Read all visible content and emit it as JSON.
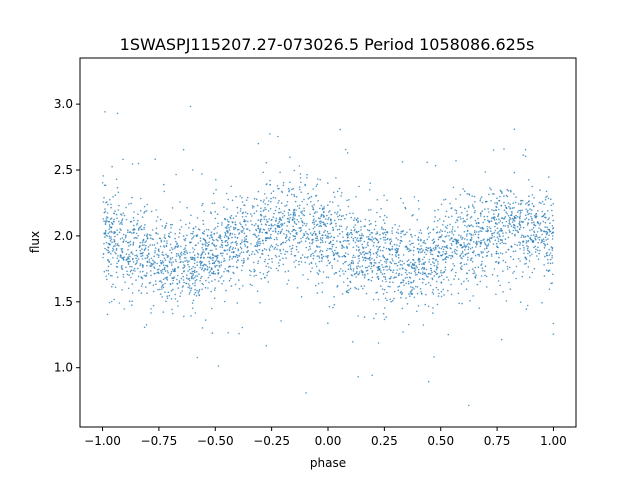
{
  "chart_data": {
    "type": "scatter",
    "title": "1SWASPJ115207.27-073026.5 Period 1058086.625s",
    "xlabel": "phase",
    "ylabel": "flux",
    "xlim": [
      -1.1,
      1.1
    ],
    "ylim": [
      0.55,
      3.35
    ],
    "x_ticks": [
      -1.0,
      -0.75,
      -0.5,
      -0.25,
      0.0,
      0.25,
      0.5,
      0.75,
      1.0
    ],
    "x_tick_labels": [
      "−1.00",
      "−0.75",
      "−0.50",
      "−0.25",
      "0.00",
      "0.25",
      "0.50",
      "0.75",
      "1.00"
    ],
    "y_ticks": [
      1.0,
      1.5,
      2.0,
      2.5,
      3.0
    ],
    "y_tick_labels": [
      "1.0",
      "1.5",
      "2.0",
      "2.5",
      "3.0"
    ],
    "grid": false,
    "legend": "none",
    "point_color": "#1f77b4",
    "series": [
      {
        "x_range": [
          -1.0,
          1.0
        ],
        "mean_curve": {
          "x": [
            -1.0,
            -0.9,
            -0.8,
            -0.7,
            -0.6,
            -0.5,
            -0.4,
            -0.3,
            -0.2,
            -0.1,
            0.0,
            0.1,
            0.2,
            0.3,
            0.4,
            0.5,
            0.6,
            0.7,
            0.8,
            0.9,
            1.0
          ],
          "y": [
            2.0,
            1.93,
            1.85,
            1.8,
            1.8,
            1.86,
            1.95,
            2.03,
            2.08,
            2.05,
            2.0,
            1.93,
            1.85,
            1.8,
            1.8,
            1.86,
            1.95,
            2.03,
            2.08,
            2.05,
            2.0
          ]
        },
        "scatter_sd": 0.17,
        "y_min": 0.68,
        "y_max": 3.22
      }
    ]
  }
}
